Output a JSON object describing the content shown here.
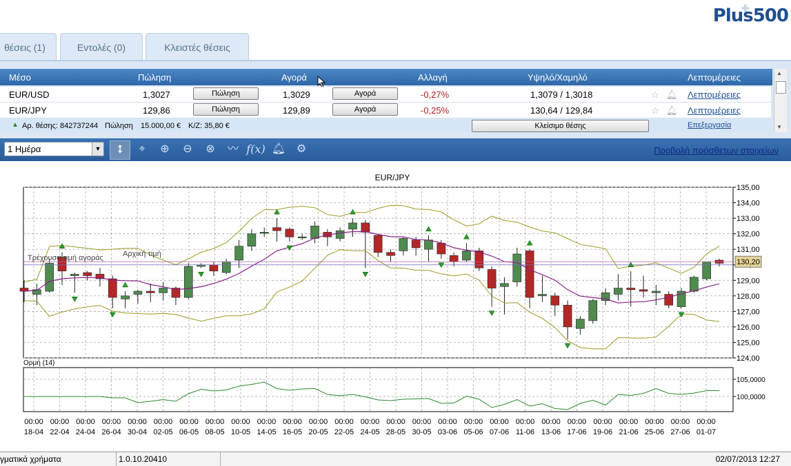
{
  "brand": {
    "logo": "Plus500"
  },
  "tabs": [
    {
      "label": "θέσεις (1)"
    },
    {
      "label": "Εντολές (0)"
    },
    {
      "label": "Κλειστές θέσεις"
    }
  ],
  "table": {
    "headers": {
      "instrument": "Μέσο",
      "sell": "Πώληση",
      "buy": "Αγορά",
      "change": "Αλλαγή",
      "highlow": "Υψηλό/Χαμηλό",
      "details": "Λεπτομέρειες"
    },
    "rows": [
      {
        "instrument": "EUR/USD",
        "sell": "1,3027",
        "sell_btn": "Πώληση",
        "buy": "1,3029",
        "buy_btn": "Αγορά",
        "change": "-0,27%",
        "highlow": "1,3079 / 1,3018",
        "details": "Λεπτομέρειες"
      },
      {
        "instrument": "EUR/JPY",
        "sell": "129,86",
        "sell_btn": "Πώληση",
        "buy": "129,89",
        "buy_btn": "Αγορά",
        "change": "-0,25%",
        "highlow": "130,64 / 129,84",
        "details": "Λεπτομέρειες"
      }
    ],
    "position": {
      "id": "Αρ. θέσης: 842737244",
      "side": "Πώληση",
      "amount": "15.000,00 €",
      "pl": "Κ/Ζ: 35,80 €",
      "close_btn": "Κλείσιμο θέσης",
      "edit": "Επεξεργασία"
    }
  },
  "toolbar": {
    "period": "1 Ημέρα",
    "tools": [
      "cursor-icon",
      "crosshair-icon",
      "zoom-in-icon",
      "zoom-out-icon",
      "zoom-reset-icon",
      "indicator-line-icon",
      "function-icon",
      "bell-icon",
      "gear-icon"
    ],
    "more_link": "Προβολή πρόσθετων στοιχείων"
  },
  "chart_data": {
    "type": "candlestick",
    "title": "EUR/JPY",
    "y_ticks": [
      "135,00",
      "134,00",
      "133,00",
      "132,00",
      "131,00",
      "130,00",
      "129,00",
      "128,00",
      "127,00",
      "126,00",
      "125,00",
      "124,00"
    ],
    "ylim": [
      124,
      135
    ],
    "current_price": "130,20",
    "labels": {
      "current": "Τρέχουσα τιμή αγοράς",
      "initial": "Αρχική τιμή",
      "oscillator": "Ορμή (14)"
    },
    "x_labels": [
      {
        "time": "00:00",
        "date": "18-04"
      },
      {
        "time": "00:00",
        "date": "22-04"
      },
      {
        "time": "00:00",
        "date": "24-04"
      },
      {
        "time": "00:00",
        "date": "26-04"
      },
      {
        "time": "00:00",
        "date": "30-04"
      },
      {
        "time": "00:00",
        "date": "02-05"
      },
      {
        "time": "00:00",
        "date": "06-05"
      },
      {
        "time": "00:00",
        "date": "08-05"
      },
      {
        "time": "00:00",
        "date": "10-05"
      },
      {
        "time": "00:00",
        "date": "14-05"
      },
      {
        "time": "00:00",
        "date": "16-05"
      },
      {
        "time": "00:00",
        "date": "20-05"
      },
      {
        "time": "00:00",
        "date": "22-05"
      },
      {
        "time": "00:00",
        "date": "24-05"
      },
      {
        "time": "00:00",
        "date": "28-05"
      },
      {
        "time": "00:00",
        "date": "30-05"
      },
      {
        "time": "00:00",
        "date": "03-06"
      },
      {
        "time": "00:00",
        "date": "05-06"
      },
      {
        "time": "00:00",
        "date": "07-06"
      },
      {
        "time": "00:00",
        "date": "11-06"
      },
      {
        "time": "00:00",
        "date": "13-06"
      },
      {
        "time": "00:00",
        "date": "17-06"
      },
      {
        "time": "00:00",
        "date": "19-06"
      },
      {
        "time": "00:00",
        "date": "21-06"
      },
      {
        "time": "00:00",
        "date": "25-06"
      },
      {
        "time": "00:00",
        "date": "27-06"
      },
      {
        "time": "00:00",
        "date": "01-07"
      }
    ],
    "candles": [
      [
        128.5,
        128.3,
        129.0,
        127.6
      ],
      [
        128.1,
        128.4,
        128.8,
        127.4
      ],
      [
        128.3,
        130.1,
        130.4,
        128.2
      ],
      [
        130.5,
        129.6,
        130.8,
        128.7
      ],
      [
        129.3,
        129.4,
        129.5,
        128.2
      ],
      [
        129.5,
        129.3,
        129.6,
        129.0
      ],
      [
        129.4,
        129.1,
        129.8,
        128.6
      ],
      [
        129.1,
        127.9,
        129.3,
        127.2
      ],
      [
        127.8,
        128.0,
        128.3,
        127.2
      ],
      [
        128.1,
        128.3,
        128.4,
        127.5
      ],
      [
        128.3,
        128.2,
        128.8,
        127.6
      ],
      [
        128.2,
        128.5,
        128.9,
        127.7
      ],
      [
        128.5,
        127.9,
        128.6,
        127.4
      ],
      [
        127.9,
        129.9,
        130.1,
        127.8
      ],
      [
        129.9,
        130.0,
        130.1,
        129.8
      ],
      [
        130.0,
        129.6,
        130.2,
        129.3
      ],
      [
        129.5,
        130.2,
        130.4,
        129.4
      ],
      [
        130.3,
        131.2,
        131.6,
        129.8
      ],
      [
        131.2,
        132.0,
        132.3,
        130.9
      ],
      [
        132.1,
        132.1,
        132.4,
        131.8
      ],
      [
        132.4,
        132.2,
        133.0,
        131.5
      ],
      [
        132.3,
        131.8,
        132.4,
        131.5
      ],
      [
        131.8,
        131.8,
        132.0,
        131.6
      ],
      [
        131.7,
        132.5,
        132.8,
        131.4
      ],
      [
        132.1,
        131.8,
        132.3,
        131.2
      ],
      [
        131.7,
        132.2,
        132.4,
        131.5
      ],
      [
        132.3,
        132.7,
        133.0,
        131.8
      ],
      [
        132.7,
        132.1,
        132.9,
        129.8
      ],
      [
        131.9,
        130.8,
        132.0,
        130.5
      ],
      [
        130.8,
        130.6,
        131.0,
        130.2
      ],
      [
        130.9,
        131.7,
        131.8,
        130.6
      ],
      [
        131.6,
        131.1,
        131.8,
        130.6
      ],
      [
        131.0,
        131.6,
        131.9,
        130.2
      ],
      [
        131.4,
        130.7,
        131.6,
        130.4
      ],
      [
        130.6,
        130.2,
        130.8,
        129.9
      ],
      [
        130.3,
        130.9,
        131.4,
        130.2
      ],
      [
        130.9,
        129.8,
        131.1,
        129.6
      ],
      [
        129.7,
        128.5,
        129.9,
        127.3
      ],
      [
        128.6,
        128.8,
        129.2,
        126.8
      ],
      [
        128.9,
        130.7,
        131.1,
        128.6
      ],
      [
        130.9,
        127.9,
        131.0,
        127.2
      ],
      [
        128.0,
        128.1,
        129.3,
        127.6
      ],
      [
        128.0,
        127.4,
        128.2,
        126.7
      ],
      [
        127.4,
        126.0,
        127.7,
        125.2
      ],
      [
        125.9,
        126.5,
        126.7,
        125.5
      ],
      [
        126.4,
        127.7,
        127.8,
        126.2
      ],
      [
        127.7,
        128.2,
        128.5,
        127.4
      ],
      [
        128.1,
        128.5,
        129.4,
        127.7
      ],
      [
        128.5,
        128.4,
        129.6,
        127.3
      ],
      [
        128.4,
        128.3,
        129.3,
        127.9
      ],
      [
        128.2,
        128.3,
        128.7,
        127.4
      ],
      [
        128.1,
        127.4,
        128.3,
        127.2
      ],
      [
        127.3,
        128.3,
        128.5,
        127.2
      ],
      [
        128.3,
        129.2,
        129.3,
        128.2
      ],
      [
        129.1,
        130.2,
        130.2,
        129.0
      ],
      [
        130.3,
        130.1,
        130.4,
        129.9
      ]
    ],
    "oscillator_ticks": [
      "105,0000",
      "100,0000"
    ]
  },
  "status": {
    "left": "γματικά χρήματα",
    "version": "1.0.10.20410",
    "datetime": "02/07/2013 12:27"
  }
}
